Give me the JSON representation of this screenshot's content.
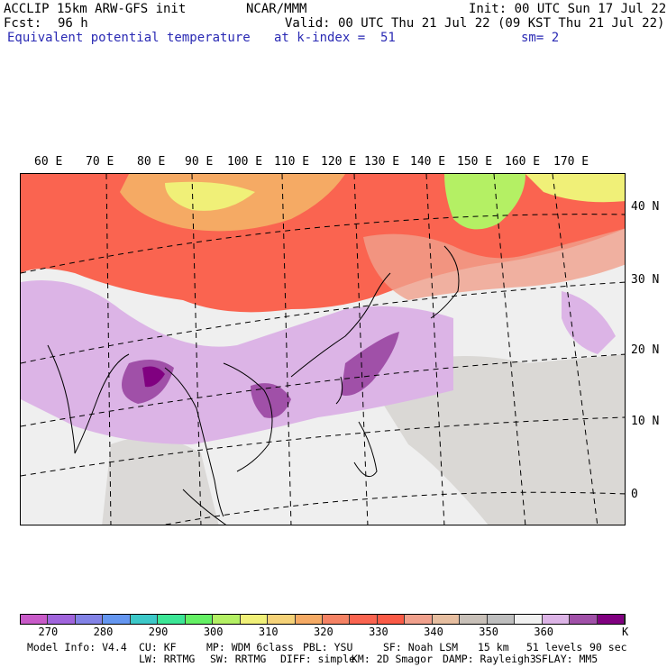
{
  "header": {
    "model_line": "ACCLIP 15km ARW-GFS init",
    "org": "NCAR/MMM",
    "init": "Init: 00 UTC Sun 17 Jul 22",
    "fcst_label": "Fcst:",
    "fcst_value": "96 h",
    "valid": "Valid: 00 UTC Thu 21 Jul 22 (09 KST Thu 21 Jul 22)",
    "field": "Equivalent potential temperature",
    "level": "at k-index =  51",
    "smooth": "sm= 2"
  },
  "map": {
    "lon_labels": [
      "60 E",
      "70 E",
      "80 E",
      "90 E",
      "100 E",
      "110 E",
      "120 E",
      "130 E",
      "140 E",
      "150 E",
      "160 E",
      "170 E"
    ],
    "lat_labels": [
      "40 N",
      "30 N",
      "20 N",
      "10 N",
      "0"
    ]
  },
  "colorbar": {
    "colors": [
      "#c85ac8",
      "#a064dc",
      "#8282e6",
      "#6496f0",
      "#3cc8c8",
      "#3ce696",
      "#64f064",
      "#b4f064",
      "#f0f078",
      "#f5d278",
      "#f5aa64",
      "#f58264",
      "#fa6450",
      "#fa5a46",
      "#f0a08c",
      "#e6bea0",
      "#c8c0b8",
      "#bebebe",
      "#f0f0f0",
      "#dcb4e6",
      "#a050a8",
      "#800080"
    ],
    "labels": [
      "270",
      "280",
      "290",
      "300",
      "310",
      "320",
      "330",
      "340",
      "350",
      "360"
    ],
    "unit": "K"
  },
  "footer": {
    "row1": [
      "Model Info: V4.4",
      "CU: KF",
      "MP: WDM 6class",
      "PBL: YSU",
      "SF: Noah LSM",
      "15 km",
      "51 levels",
      "90 sec"
    ],
    "row2": [
      "LW: RRTMG",
      "SW: RRTMG",
      "DIFF: simple",
      "KM: 2D Smagor",
      "DAMP: Rayleigh3",
      "SFLAY: MM5"
    ]
  }
}
